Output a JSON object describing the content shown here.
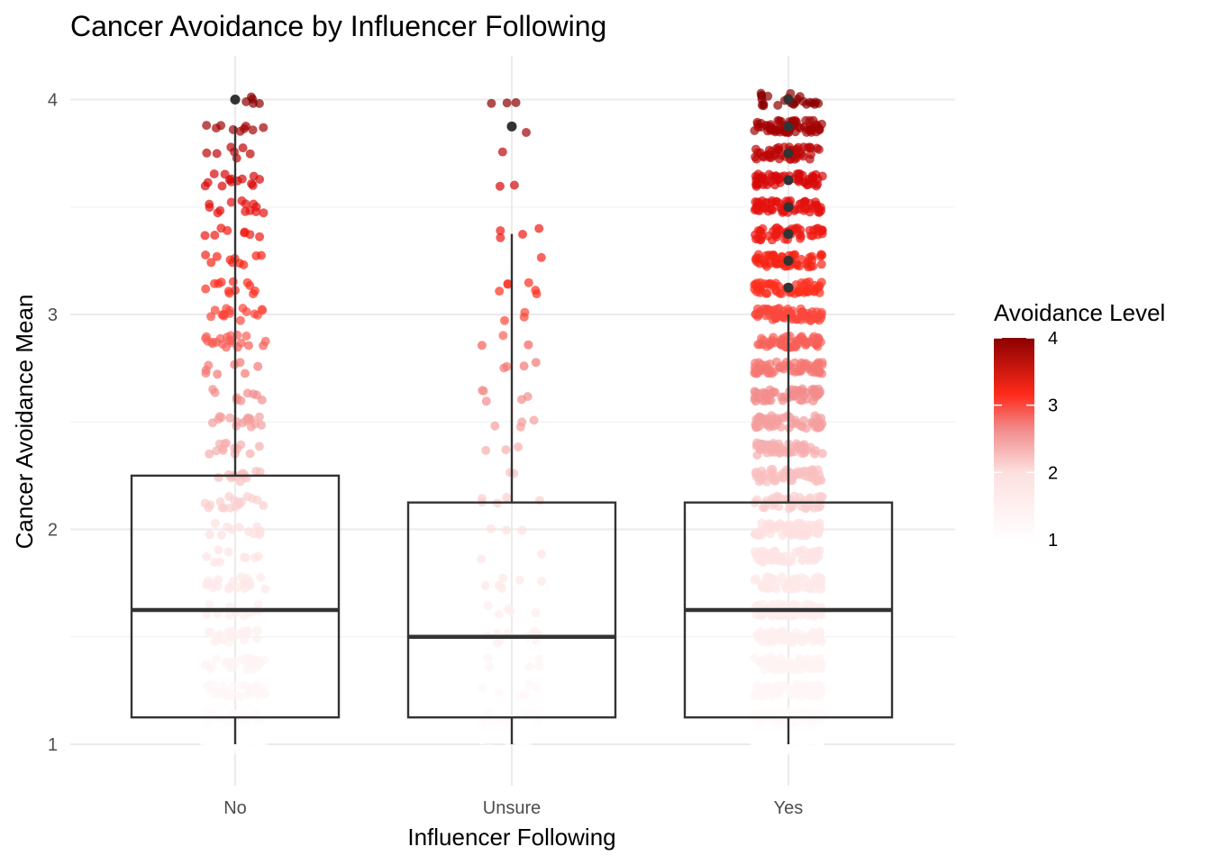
{
  "chart_data": {
    "type": "box",
    "title": "Cancer Avoidance by Influencer Following",
    "xlabel": "Influencer Following",
    "ylabel": "Cancer Avoidance Mean",
    "categories": [
      "No",
      "Unsure",
      "Yes"
    ],
    "ylim": [
      0.95,
      4.2
    ],
    "yticks": [
      1,
      2,
      3,
      4
    ],
    "minor_gridlines": [
      1.5,
      2.5,
      3.5
    ],
    "boxes": [
      {
        "category": "No",
        "q1": 1.125,
        "median": 1.625,
        "q3": 2.25,
        "whisker_low": 1.0,
        "whisker_high": 3.875,
        "outliers": [
          4.0
        ]
      },
      {
        "category": "Unsure",
        "q1": 1.125,
        "median": 1.5,
        "q3": 2.125,
        "whisker_low": 1.0,
        "whisker_high": 3.375,
        "outliers": [
          3.875
        ]
      },
      {
        "category": "Yes",
        "q1": 1.125,
        "median": 1.625,
        "q3": 2.125,
        "whisker_low": 1.0,
        "whisker_high": 3.0,
        "outliers": [
          3.125,
          3.25,
          3.375,
          3.5,
          3.625,
          3.75,
          3.875,
          4.0
        ]
      }
    ],
    "jitter_summary": [
      {
        "category": "No",
        "approx_points": 420,
        "range": [
          1.0,
          4.05
        ]
      },
      {
        "category": "Unsure",
        "approx_points": 110,
        "range": [
          1.0,
          3.875
        ]
      },
      {
        "category": "Yes",
        "approx_points": 1500,
        "range": [
          1.0,
          4.05
        ]
      }
    ],
    "color_scale": {
      "title": "Avoidance Level",
      "domain": [
        1,
        4
      ],
      "ticks": [
        1,
        2,
        3,
        4
      ],
      "colors": [
        "#ffffff",
        "#f7b3b3",
        "#ff2a1a",
        "#8b0000"
      ]
    }
  }
}
